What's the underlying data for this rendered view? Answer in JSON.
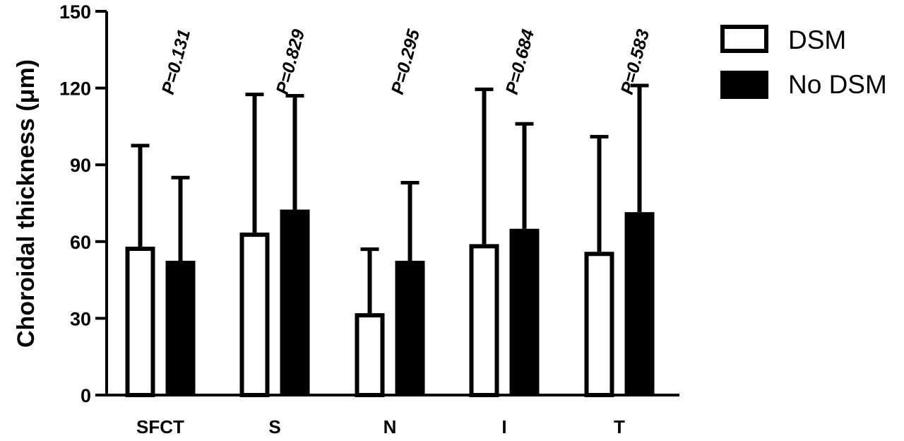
{
  "chart_data": {
    "type": "bar",
    "ylabel": "Choroidal thickness (μm)",
    "ylim": [
      0,
      150
    ],
    "yticks": [
      "0",
      "30",
      "60",
      "90",
      "120",
      "150"
    ],
    "categories": [
      "SFCT",
      "S",
      "N",
      "I",
      "T"
    ],
    "series": [
      {
        "name": "DSM",
        "fill": "#ffffff",
        "values": [
          58,
          63.5,
          32,
          59,
          56
        ],
        "error_upper": [
          97.5,
          117.5,
          57,
          119.5,
          101
        ]
      },
      {
        "name": "No DSM",
        "fill": "#000000",
        "values": [
          52.5,
          72.5,
          52.5,
          65,
          71.5
        ],
        "error_upper": [
          85,
          117,
          83,
          106,
          121
        ]
      }
    ],
    "annotations": [
      "P=0.131",
      "P=0.829",
      "P=0.295",
      "P=0.684",
      "P=0.583"
    ],
    "legend_position": "top-right"
  }
}
